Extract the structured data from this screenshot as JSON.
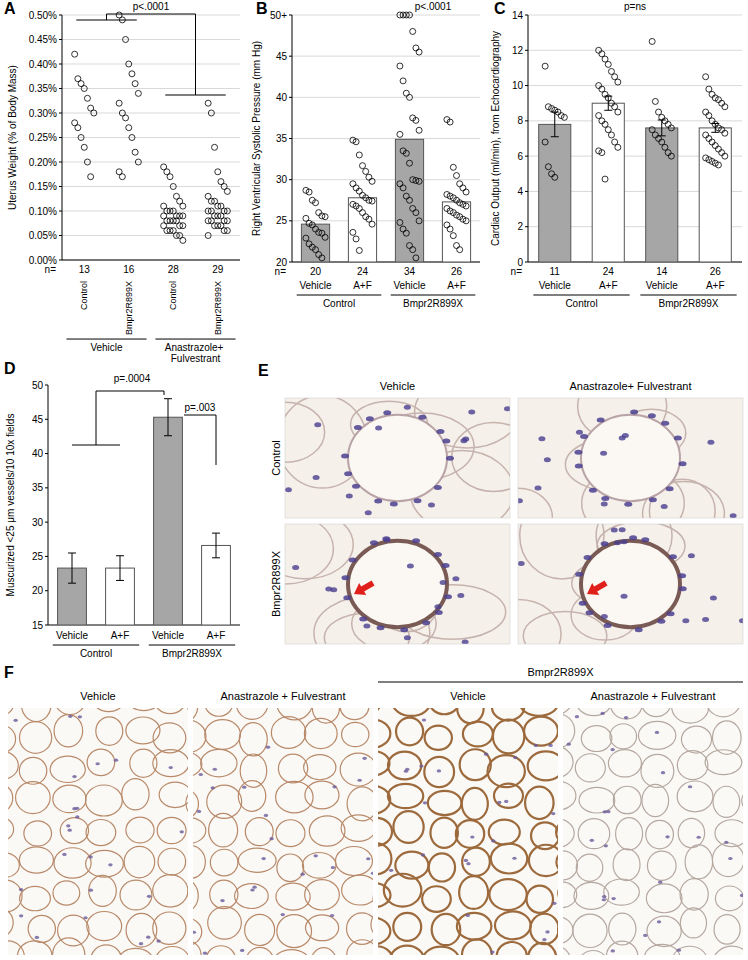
{
  "chart_data": [
    {
      "type": "scatter",
      "title": "A",
      "y_label": "Uterus Weight (% of Body Mass)",
      "categories": [
        "Control",
        "Bmpr2R899X",
        "Control",
        "Bmpr2R899X"
      ],
      "group_labels": [
        "Vehicle",
        "Anastrazole+ Fulvestrant"
      ],
      "n_label": "n=",
      "n": [
        13,
        16,
        28,
        29
      ],
      "points": [
        [
          0.42,
          0.37,
          0.36,
          0.35,
          0.33,
          0.31,
          0.3,
          0.28,
          0.27,
          0.25,
          0.23,
          0.2,
          0.17
        ],
        [
          0.5,
          0.49,
          0.45,
          0.4,
          0.38,
          0.36,
          0.34,
          0.32,
          0.3,
          0.29,
          0.27,
          0.25,
          0.22,
          0.2,
          0.18,
          0.17
        ],
        [
          0.19,
          0.18,
          0.17,
          0.15,
          0.13,
          0.12,
          0.11,
          0.11,
          0.1,
          0.1,
          0.1,
          0.09,
          0.09,
          0.09,
          0.09,
          0.08,
          0.08,
          0.08,
          0.08,
          0.07,
          0.07,
          0.07,
          0.06,
          0.06,
          0.06,
          0.05,
          0.05,
          0.04
        ],
        [
          0.32,
          0.3,
          0.23,
          0.18,
          0.16,
          0.15,
          0.14,
          0.13,
          0.12,
          0.12,
          0.11,
          0.11,
          0.1,
          0.1,
          0.1,
          0.1,
          0.09,
          0.09,
          0.09,
          0.08,
          0.08,
          0.08,
          0.08,
          0.07,
          0.07,
          0.07,
          0.06,
          0.06,
          0.05
        ]
      ],
      "ylim": [
        0,
        0.5
      ],
      "yticks": [
        {
          "value": 0,
          "label": "0.00%"
        },
        {
          "value": 0.05,
          "label": "0.05%"
        },
        {
          "value": 0.1,
          "label": "0.10%"
        },
        {
          "value": 0.15,
          "label": "0.15%"
        },
        {
          "value": 0.2,
          "label": "0.20%"
        },
        {
          "value": 0.25,
          "label": "0.25%"
        },
        {
          "value": 0.3,
          "label": "0.30%"
        },
        {
          "value": 0.35,
          "label": "0.35%"
        },
        {
          "value": 0.4,
          "label": "0.40%"
        },
        {
          "value": 0.45,
          "label": "0.45%"
        },
        {
          "value": 0.5,
          "label": "0.50%"
        }
      ],
      "grid": true,
      "marker": "circle",
      "annotations": [
        "p<.0001"
      ]
    },
    {
      "type": "bar",
      "title": "B",
      "y_label": "Right Ventricular Systolic Pressure (mm Hg)",
      "categories": [
        "Vehicle",
        "A+F",
        "Vehicle",
        "A+F"
      ],
      "group_labels": [
        "Control",
        "Bmpr2R899X"
      ],
      "n_label": "n=",
      "n": [
        20,
        24,
        34,
        26
      ],
      "values": [
        24.6,
        27.8,
        34.9,
        27.3
      ],
      "colors": [
        "#a6a6a6",
        "#ffffff",
        "#a6a6a6",
        "#ffffff"
      ],
      "points": [
        [
          28.7,
          28.5,
          27.5,
          27.2,
          26.0,
          25.6,
          25.5,
          25.3,
          24.7,
          24.5,
          24.0,
          23.6,
          23.5,
          23.0,
          22.9,
          22.2,
          21.8,
          21.5,
          20.9,
          20.5
        ],
        [
          34.8,
          34.6,
          33.0,
          31.7,
          31.0,
          30.3,
          29.8,
          29.5,
          29.0,
          28.6,
          28.1,
          27.8,
          27.5,
          27.4,
          27.0,
          26.8,
          26.5,
          26.0,
          25.5,
          25.2,
          24.6,
          23.6,
          22.8,
          21.4
        ],
        [
          50,
          50,
          50,
          50,
          48.0,
          46.0,
          45.5,
          43.8,
          42.0,
          40.5,
          40.0,
          37.5,
          37.2,
          36.0,
          35.5,
          33.5,
          33.2,
          32.0,
          30.0,
          29.9,
          29.8,
          29.5,
          29.0,
          28.0,
          27.5,
          26.5,
          26.0,
          25.0,
          24.8,
          24.0,
          23.5,
          22.0,
          21.5,
          20.5
        ],
        [
          37.3,
          37.0,
          31.5,
          30.5,
          29.5,
          29.0,
          28.5,
          28.2,
          28.0,
          27.8,
          27.5,
          27.2,
          27.0,
          26.8,
          26.5,
          26.2,
          26.0,
          25.7,
          25.5,
          25.2,
          25.0,
          24.5,
          24.0,
          23.2,
          22.0,
          21.5
        ]
      ],
      "ylim": [
        20,
        50
      ],
      "yticks": [
        20,
        25,
        30,
        35,
        40,
        45,
        {
          "value": 50,
          "label": "50+"
        }
      ],
      "grid": true,
      "marker": "circle",
      "annotations": [
        "p<.0001"
      ]
    },
    {
      "type": "bar",
      "title": "C",
      "y_label": "Cardiac Output (ml/min), from Echocardiography",
      "categories": [
        "Vehicle",
        "A+F",
        "Vehicle",
        "A+F"
      ],
      "group_labels": [
        "Control",
        "Bmpr2R899X"
      ],
      "n_label": "n=",
      "n": [
        11,
        24,
        14,
        26
      ],
      "values": [
        7.8,
        9.0,
        7.6,
        7.6
      ],
      "errors": [
        0.7,
        0.4,
        0.45,
        0.25
      ],
      "colors": [
        "#a6a6a6",
        "#ffffff",
        "#a6a6a6",
        "#ffffff"
      ],
      "points": [
        [
          11.1,
          8.8,
          8.7,
          8.6,
          8.5,
          8.3,
          8.2,
          6.8,
          5.4,
          5.0,
          4.8
        ],
        [
          12.0,
          11.8,
          11.5,
          11.2,
          10.8,
          10.5,
          10.2,
          10.0,
          9.8,
          9.5,
          9.3,
          9.0,
          8.8,
          8.5,
          8.3,
          8.0,
          7.8,
          7.5,
          7.2,
          6.8,
          6.5,
          6.3,
          6.2,
          4.7
        ],
        [
          12.5,
          9.1,
          8.5,
          8.2,
          8.0,
          7.8,
          7.6,
          7.5,
          7.2,
          7.0,
          6.8,
          6.5,
          6.2,
          6.0
        ],
        [
          10.5,
          9.8,
          9.5,
          9.3,
          9.2,
          9.0,
          8.8,
          8.5,
          8.3,
          8.0,
          7.8,
          7.6,
          7.5,
          7.3,
          7.2,
          7.0,
          6.8,
          6.6,
          6.4,
          6.2,
          6.0,
          5.9,
          5.8,
          5.7,
          5.6,
          5.5
        ]
      ],
      "ylim": [
        0,
        14
      ],
      "yticks": [
        0,
        2,
        4,
        6,
        8,
        10,
        12,
        14
      ],
      "grid": true,
      "marker": "circle",
      "annotations": [
        "p=ns"
      ]
    },
    {
      "type": "bar",
      "title": "D",
      "y_label": "Muscurized <25 μm vessels/10 10x fields",
      "categories": [
        "Vehicle",
        "A+F",
        "Vehicle",
        "A+F"
      ],
      "group_labels": [
        "Control",
        "Bmpr2R899X"
      ],
      "values": [
        23.3,
        23.3,
        45.3,
        26.6
      ],
      "errors": [
        2.2,
        1.8,
        2.7,
        1.8
      ],
      "colors": [
        "#a6a6a6",
        "#ffffff",
        "#a6a6a6",
        "#ffffff"
      ],
      "ylim": [
        15,
        50
      ],
      "yticks": [
        15,
        20,
        25,
        30,
        35,
        40,
        45,
        50
      ],
      "grid": false,
      "annotations": [
        "p=.0004",
        "p=.003"
      ]
    }
  ],
  "panels": [
    {
      "title": "E",
      "columns": [
        "Vehicle",
        "Anastrazole+ Fulvestrant"
      ],
      "rows": [
        "Control",
        "Bmpr2R899X"
      ]
    },
    {
      "title": "F",
      "columns": [
        "Vehicle",
        "Anastrazole + Fulvestrant",
        "Vehicle",
        "Anastrazole + Fulvestrant"
      ],
      "group_label": "Bmpr2R899X"
    }
  ]
}
